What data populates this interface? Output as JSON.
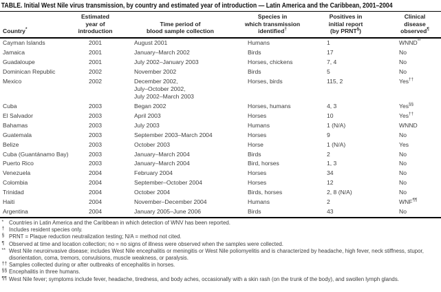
{
  "title": "TABLE. Initial West Nile virus transmission, by country and estimated year of introduction — Latin America and the Caribbean, 2001–2004",
  "table": {
    "columns": [
      {
        "id": "country",
        "lines": [
          "Country^{*}"
        ]
      },
      {
        "id": "year",
        "lines": [
          "Estimated",
          "year of",
          "introduction"
        ]
      },
      {
        "id": "period",
        "lines": [
          "Time period of",
          "blood sample collection"
        ]
      },
      {
        "id": "species",
        "lines": [
          "Species in",
          "which transmission",
          "identified^{†}"
        ]
      },
      {
        "id": "positives",
        "lines": [
          "Positives in",
          "initial report",
          "(by PRNT^{§})"
        ]
      },
      {
        "id": "clinical",
        "lines": [
          "Clinical",
          "disease",
          "observed^{¶}"
        ]
      }
    ],
    "rows": [
      {
        "country": "Cayman Islands",
        "year": "2001",
        "period": [
          "August 2001"
        ],
        "species": "Humans",
        "positives": "1",
        "clinical": "WNND^{**}"
      },
      {
        "country": "Jamaica",
        "year": "2001",
        "period": [
          "January–March 2002"
        ],
        "species": "Birds",
        "positives": "17",
        "clinical": "No"
      },
      {
        "country": "Guadaloupe",
        "year": "2001",
        "period": [
          "July 2002–January 2003"
        ],
        "species": "Horses, chickens",
        "positives": "7, 4",
        "clinical": "No"
      },
      {
        "country": "Dominican Republic",
        "year": "2002",
        "period": [
          "November 2002"
        ],
        "species": "Birds",
        "positives": "5",
        "clinical": "No"
      },
      {
        "country": "Mexico",
        "year": "2002",
        "period": [
          "December 2002,",
          "July–October 2002,",
          "July 2002–March 2003"
        ],
        "species": "Horses, birds",
        "positives": "115, 2",
        "clinical": "Yes^{††}"
      },
      {
        "country": "Cuba",
        "year": "2003",
        "period": [
          "Began 2002"
        ],
        "species": "Horses, humans",
        "positives": "4, 3",
        "clinical": "Yes^{§§}"
      },
      {
        "country": "El Salvador",
        "year": "2003",
        "period": [
          "April 2003"
        ],
        "species": "Horses",
        "positives": "10",
        "clinical": "Yes^{††}"
      },
      {
        "country": "Bahamas",
        "year": "2003",
        "period": [
          "July 2003"
        ],
        "species": "Humans",
        "positives": "1 (N/A)",
        "clinical": "WNND"
      },
      {
        "country": "Guatemala",
        "year": "2003",
        "period": [
          "September 2003–March 2004"
        ],
        "species": "Horses",
        "positives": "9",
        "clinical": "No"
      },
      {
        "country": "Belize",
        "year": "2003",
        "period": [
          "October 2003"
        ],
        "species": "Horse",
        "positives": "1 (N/A)",
        "clinical": "Yes"
      },
      {
        "country": "Cuba (Guantánamo Bay)",
        "year": "2003",
        "period": [
          "January–March 2004"
        ],
        "species": "Birds",
        "positives": "2",
        "clinical": "No"
      },
      {
        "country": "Puerto Rico",
        "year": "2003",
        "period": [
          "January–March 2004"
        ],
        "species": "Bird, horses",
        "positives": "1, 3",
        "clinical": "No"
      },
      {
        "country": "Venezuela",
        "year": "2004",
        "period": [
          "February 2004"
        ],
        "species": "Horses",
        "positives": "34",
        "clinical": "No"
      },
      {
        "country": "Colombia",
        "year": "2004",
        "period": [
          "September–October 2004"
        ],
        "species": "Horses",
        "positives": "12",
        "clinical": "No"
      },
      {
        "country": "Trinidad",
        "year": "2004",
        "period": [
          "October 2004"
        ],
        "species": "Birds, horses",
        "positives": "2, 8 (N/A)",
        "clinical": "No"
      },
      {
        "country": "Haiti",
        "year": "2004",
        "period": [
          "November–December 2004"
        ],
        "species": "Humans",
        "positives": "2",
        "clinical": "WNF^{¶¶}"
      },
      {
        "country": "Argentina",
        "year": "2004",
        "period": [
          "January 2005–June 2006"
        ],
        "species": "Birds",
        "positives": "43",
        "clinical": "No"
      }
    ]
  },
  "footnotes": [
    {
      "marker": "*",
      "text": "Countries in Latin America and the Caribbean in which detection of WNV has been reported."
    },
    {
      "marker": "†",
      "text": "Includes resident species only."
    },
    {
      "marker": "§",
      "text": "PRNT = Plaque reduction neutralization testing; N/A = method not cited."
    },
    {
      "marker": "¶",
      "text": "Observed at time and location collection; no = no signs of illness were observed when the samples were collected."
    },
    {
      "marker": "**",
      "text": "West Nile neuroinvasive disease; includes West Nile encephalitis or meningitis or West Nile poliomyelitis and is characterized by headache, high fever, neck stiffness, stupor, disorientation, coma, tremors, convulsions, muscle weakness, or paralysis."
    },
    {
      "marker": "††",
      "text": "Samples collected during or after outbreaks of encephalitis in horses."
    },
    {
      "marker": "§§",
      "text": "Encephalitis in three humans."
    },
    {
      "marker": "¶¶",
      "text": "West Nile fever; symptoms include fever, headache, tiredness, and body aches, occasionally with a skin rash (on the trunk of the body), and swollen lymph glands."
    }
  ]
}
